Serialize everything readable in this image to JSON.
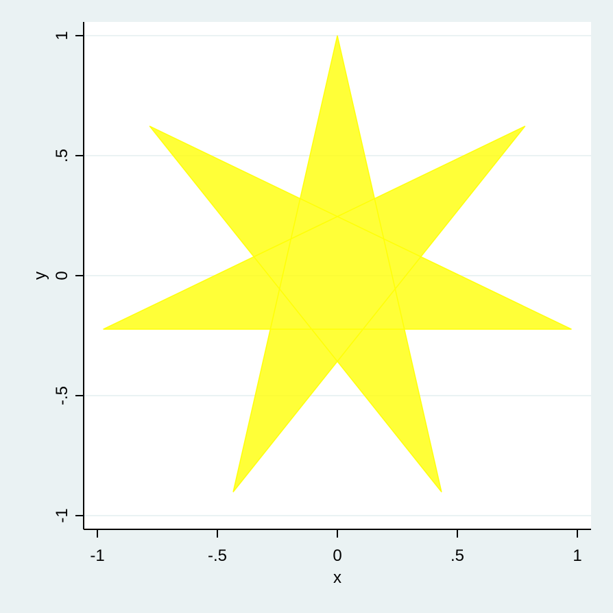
{
  "chart_data": {
    "type": "area",
    "title": "",
    "xlabel": "x",
    "ylabel": "y",
    "xlim": [
      -1,
      1
    ],
    "ylim": [
      -1,
      1
    ],
    "x_ticks": [
      {
        "value": -1,
        "label": "-1"
      },
      {
        "value": -0.5,
        "label": "-.5"
      },
      {
        "value": 0,
        "label": "0"
      },
      {
        "value": 0.5,
        "label": ".5"
      },
      {
        "value": 1,
        "label": "1"
      }
    ],
    "y_ticks": [
      {
        "value": -1,
        "label": "-1"
      },
      {
        "value": -0.5,
        "label": "-.5"
      },
      {
        "value": 0,
        "label": "0"
      },
      {
        "value": 0.5,
        "label": ".5"
      },
      {
        "value": 1,
        "label": "1"
      }
    ],
    "grid": "horizontal",
    "legend": "none",
    "series": [
      {
        "fill_color": "#ffff00",
        "fill_opacity": 0.78,
        "points": [
          {
            "x": 0,
            "y": 1
          },
          {
            "x": 0.434,
            "y": -0.901
          },
          {
            "x": -0.782,
            "y": 0.623
          },
          {
            "x": 0.975,
            "y": -0.223
          },
          {
            "x": -0.975,
            "y": -0.223
          },
          {
            "x": 0.782,
            "y": 0.623
          },
          {
            "x": -0.434,
            "y": -0.901
          }
        ]
      }
    ],
    "colors": {
      "outer_background": "#eaf2f3",
      "plot_background": "#ffffff",
      "gridline": "#eaf2f3",
      "axis": "#000000"
    }
  }
}
